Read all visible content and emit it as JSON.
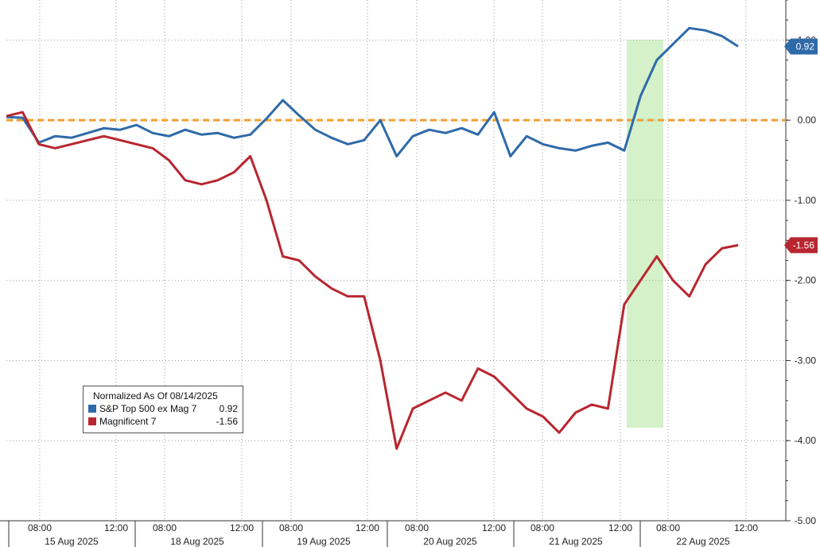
{
  "chart_data": {
    "type": "line",
    "ylim": [
      -5.0,
      1.5
    ],
    "y_ticks": [
      "1.00",
      "0.00",
      "-1.00",
      "-2.00",
      "-3.00",
      "-4.00",
      "-5.00"
    ],
    "x_time_labels": [
      "08:00",
      "12:00",
      "08:00",
      "12:00",
      "08:00",
      "12:00",
      "08:00",
      "12:00",
      "08:00",
      "12:00",
      "08:00",
      "12:00"
    ],
    "x_date_labels": [
      "15 Aug 2025",
      "18 Aug 2025",
      "19 Aug 2025",
      "20 Aug 2025",
      "21 Aug 2025",
      "22 Aug 2025"
    ],
    "legend": {
      "title": "Normalized As Of 08/14/2025",
      "placement": "bottom-left"
    },
    "reference_line": {
      "y": 0.0,
      "color": "#f0a030",
      "style": "dashed"
    },
    "highlight_band": {
      "label": "",
      "color": "#cdeec0"
    },
    "grid": true,
    "series": [
      {
        "name": "S&P Top 500 ex Mag 7",
        "legend_value": "0.92",
        "end_label": "0.92",
        "color": "#2f6aa8",
        "values": [
          0.04,
          0.03,
          -0.28,
          -0.2,
          -0.22,
          -0.16,
          -0.1,
          -0.12,
          -0.06,
          -0.16,
          -0.2,
          -0.12,
          -0.18,
          -0.16,
          -0.22,
          -0.18,
          0.02,
          0.25,
          0.06,
          -0.12,
          -0.22,
          -0.3,
          -0.25,
          0.0,
          -0.45,
          -0.2,
          -0.12,
          -0.16,
          -0.1,
          -0.18,
          0.1,
          -0.45,
          -0.2,
          -0.3,
          -0.35,
          -0.38,
          -0.32,
          -0.28,
          -0.38,
          0.3,
          0.75,
          0.95,
          1.15,
          1.12,
          1.05,
          0.92
        ]
      },
      {
        "name": "Magnificent 7",
        "legend_value": "-1.56",
        "end_label": "-1.56",
        "color": "#b8262f",
        "values": [
          0.05,
          0.1,
          -0.3,
          -0.35,
          -0.3,
          -0.25,
          -0.2,
          -0.25,
          -0.3,
          -0.35,
          -0.5,
          -0.75,
          -0.8,
          -0.75,
          -0.65,
          -0.45,
          -1.0,
          -1.7,
          -1.75,
          -1.95,
          -2.1,
          -2.2,
          -2.2,
          -3.0,
          -4.1,
          -3.6,
          -3.5,
          -3.4,
          -3.5,
          -3.1,
          -3.2,
          -3.4,
          -3.6,
          -3.7,
          -3.9,
          -3.65,
          -3.55,
          -3.6,
          -2.3,
          -2.0,
          -1.7,
          -2.0,
          -2.2,
          -1.8,
          -1.6,
          -1.56
        ]
      }
    ]
  }
}
